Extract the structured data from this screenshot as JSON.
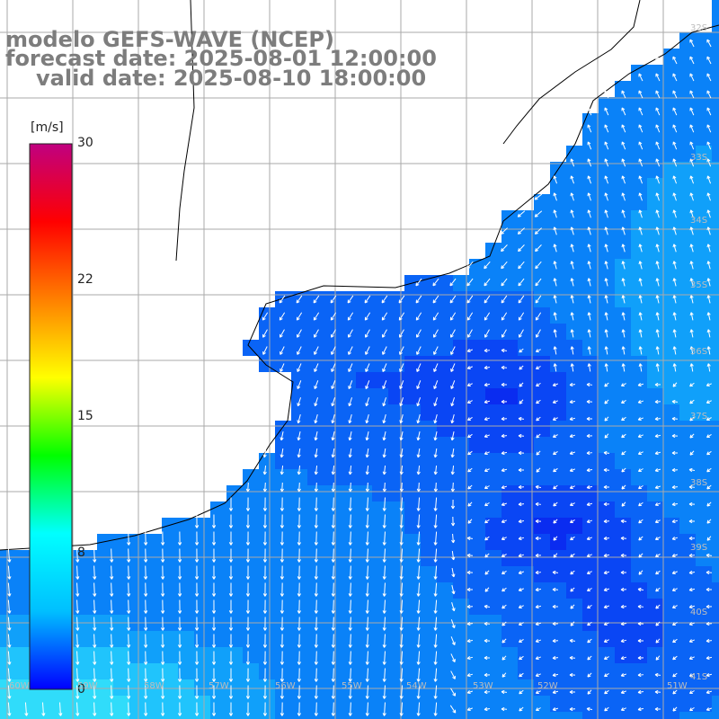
{
  "title": {
    "model": "modelo GEFS-WAVE (NCEP)",
    "forecast": "forecast date: 2025-08-01 12:00:00",
    "valid": "valid date: 2025-08-10 18:00:00"
  },
  "colorbar": {
    "unit": "[m/s]",
    "ticks": [
      "30",
      "22",
      "15",
      "8",
      "0"
    ],
    "range": [
      0,
      30
    ],
    "colors": [
      "#0000ff",
      "#00bfff",
      "#00ffff",
      "#00ff00",
      "#ffff00",
      "#ff8000",
      "#ff0000",
      "#c00080"
    ]
  },
  "grid_labels": {
    "lat": [
      "32S",
      "33S",
      "34S",
      "35S",
      "36S",
      "37S",
      "38S",
      "39S",
      "40S",
      "41S"
    ],
    "lon": [
      "60W",
      "59W",
      "58W",
      "57W",
      "56W",
      "55W",
      "54W",
      "53W",
      "52W",
      "51W"
    ]
  },
  "map": {
    "land_color": "#ffffff",
    "grid_color": "#aaaaaa",
    "coast_color": "#000000",
    "arrow_color": "#ffffff",
    "field_colors": [
      "#0a2cf0",
      "#0a46f4",
      "#0a64f6",
      "#0a82f8",
      "#10a0fa",
      "#20c4fc",
      "#30dcfa"
    ]
  }
}
